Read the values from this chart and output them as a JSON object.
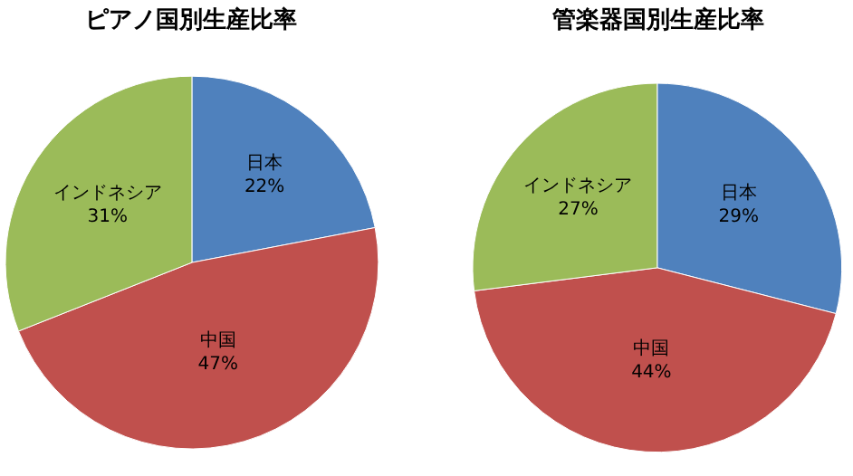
{
  "chart_data": [
    {
      "type": "pie",
      "title": "ピアノ国別生産比率",
      "categories": [
        "日本",
        "中国",
        "インドネシア"
      ],
      "values": [
        22,
        47,
        31
      ],
      "value_labels": [
        "22%",
        "47%",
        "31%"
      ],
      "colors": [
        "#4f81bd",
        "#c0504d",
        "#9bbb59"
      ],
      "legend": false
    },
    {
      "type": "pie",
      "title": "管楽器国別生産比率",
      "categories": [
        "日本",
        "中国",
        "インドネシア"
      ],
      "values": [
        29,
        44,
        27
      ],
      "value_labels": [
        "29%",
        "44%",
        "27%"
      ],
      "colors": [
        "#4f81bd",
        "#c0504d",
        "#9bbb59"
      ],
      "legend": false
    }
  ]
}
